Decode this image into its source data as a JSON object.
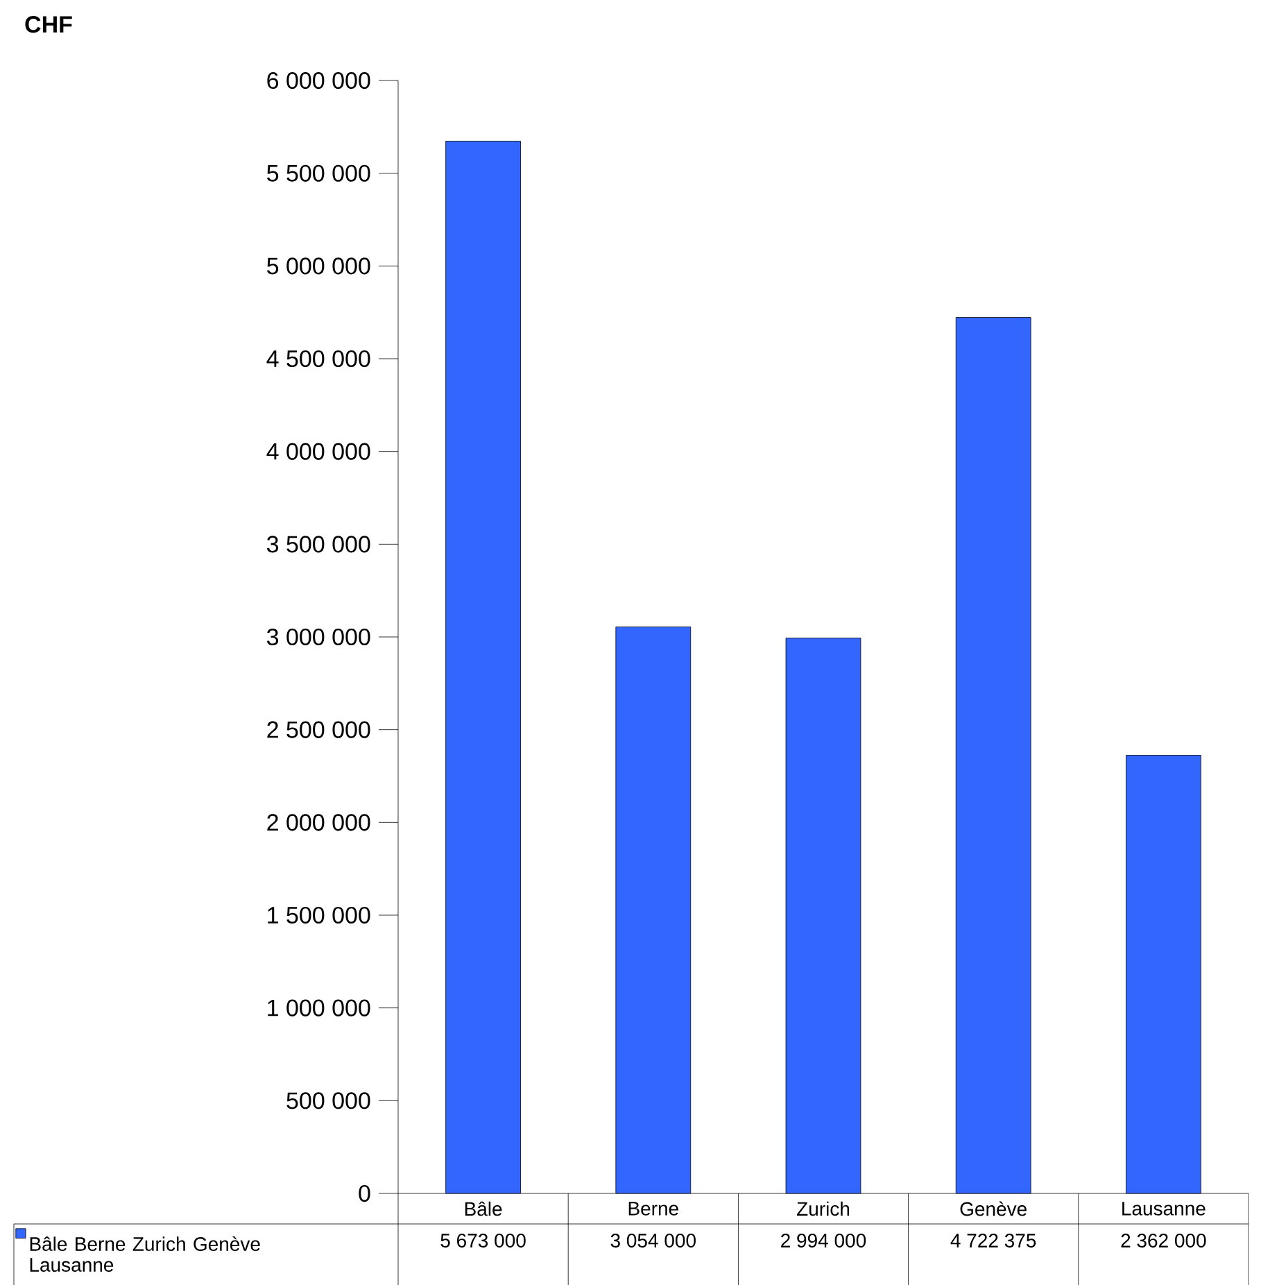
{
  "chart_data": {
    "type": "bar",
    "annotations": [
      "CHF"
    ],
    "categories": [
      "Bâle",
      "Berne",
      "Zurich",
      "Genève",
      "Lausanne"
    ],
    "series": [
      {
        "name": "Bâle Berne Zurich Genève Lausanne",
        "color": "#3366ff",
        "values": [
          5673000,
          3054000,
          2994000,
          4722375,
          2362000
        ]
      }
    ],
    "ylim": [
      0,
      6000000
    ],
    "yticks": [
      {
        "value": 0,
        "label": "0"
      },
      {
        "value": 500000,
        "label": "500 000"
      },
      {
        "value": 1000000,
        "label": "1 000 000"
      },
      {
        "value": 1500000,
        "label": "1 500 000"
      },
      {
        "value": 2000000,
        "label": "2 000 000"
      },
      {
        "value": 2500000,
        "label": "2 500 000"
      },
      {
        "value": 3000000,
        "label": "3 000 000"
      },
      {
        "value": 3500000,
        "label": "3 500 000"
      },
      {
        "value": 4000000,
        "label": "4 000 000"
      },
      {
        "value": 4500000,
        "label": "4 500 000"
      },
      {
        "value": 5000000,
        "label": "5 000 000"
      },
      {
        "value": 5500000,
        "label": "5 500 000"
      },
      {
        "value": 6000000,
        "label": "6 000 000"
      }
    ],
    "data_labels": true,
    "legend": "bottom left",
    "grid": false
  }
}
